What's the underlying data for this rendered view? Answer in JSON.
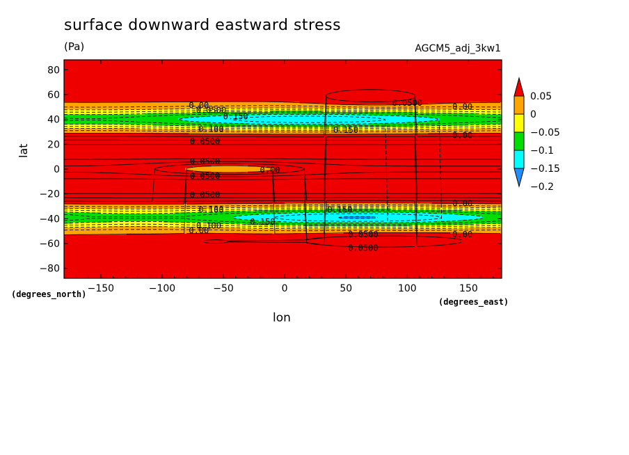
{
  "chart_data": {
    "type": "heatmap",
    "title": "surface downward eastward stress",
    "units": "(Pa)",
    "run_name": "AGCM5_adj_3kw1",
    "xlabel": "lon",
    "ylabel": "lat",
    "x_units": "(degrees_east)",
    "y_units": "(degrees_north)",
    "xlim": [
      -180,
      177
    ],
    "ylim": [
      -88,
      88
    ],
    "x_ticks": [
      -150,
      -100,
      -50,
      0,
      50,
      100,
      150
    ],
    "y_ticks": [
      -80,
      -60,
      -40,
      -20,
      0,
      20,
      40,
      60,
      80
    ],
    "x_tick_labels": [
      "−150",
      "−100",
      "−50",
      "0",
      "50",
      "100",
      "150"
    ],
    "y_tick_labels": [
      "−80",
      "−60",
      "−40",
      "−20",
      "0",
      "20",
      "40",
      "60",
      "80"
    ],
    "colorbar": {
      "levels": [
        -0.2,
        -0.15,
        -0.1,
        -0.05,
        0,
        0.05
      ],
      "level_labels": [
        "−0.2",
        "−0.15",
        "−0.1",
        "−0.05",
        "0",
        "0.05"
      ],
      "colors": [
        "#1e90ff",
        "#00ffff",
        "#00dd00",
        "#ffff00",
        "#ffa500",
        "#ee0000"
      ],
      "extend": "both"
    },
    "contour_labels": [
      {
        "text": "0.0500",
        "lon": 100,
        "lat": 53
      },
      {
        "text": "0.00",
        "lon": 145,
        "lat": 50
      },
      {
        "text": "0.00",
        "lon": -70,
        "lat": 51
      },
      {
        "text": "0.0500",
        "lon": -60,
        "lat": 47
      },
      {
        "text": "0.150",
        "lon": -40,
        "lat": 42
      },
      {
        "text": "0.150",
        "lon": 50,
        "lat": 31
      },
      {
        "text": "0.00",
        "lon": 145,
        "lat": 27
      },
      {
        "text": "0.100",
        "lon": -60,
        "lat": 32
      },
      {
        "text": "0.0500",
        "lon": -65,
        "lat": 22
      },
      {
        "text": "0.0500",
        "lon": -65,
        "lat": 6
      },
      {
        "text": "0.00",
        "lon": -12,
        "lat": -1
      },
      {
        "text": "0.0500",
        "lon": -65,
        "lat": -6
      },
      {
        "text": "0.0500",
        "lon": -65,
        "lat": -21
      },
      {
        "text": "0.00",
        "lon": 145,
        "lat": -28
      },
      {
        "text": "0.100",
        "lon": -60,
        "lat": -33
      },
      {
        "text": "0.150",
        "lon": 45,
        "lat": -33
      },
      {
        "text": "0.150",
        "lon": -18,
        "lat": -43
      },
      {
        "text": "0.100",
        "lon": -62,
        "lat": -46
      },
      {
        "text": "0.00",
        "lon": -70,
        "lat": -50
      },
      {
        "text": "0.0500",
        "lon": 64,
        "lat": -53
      },
      {
        "text": "0.00",
        "lon": 145,
        "lat": -53
      },
      {
        "text": "0.0500",
        "lon": 64,
        "lat": -64
      }
    ]
  }
}
